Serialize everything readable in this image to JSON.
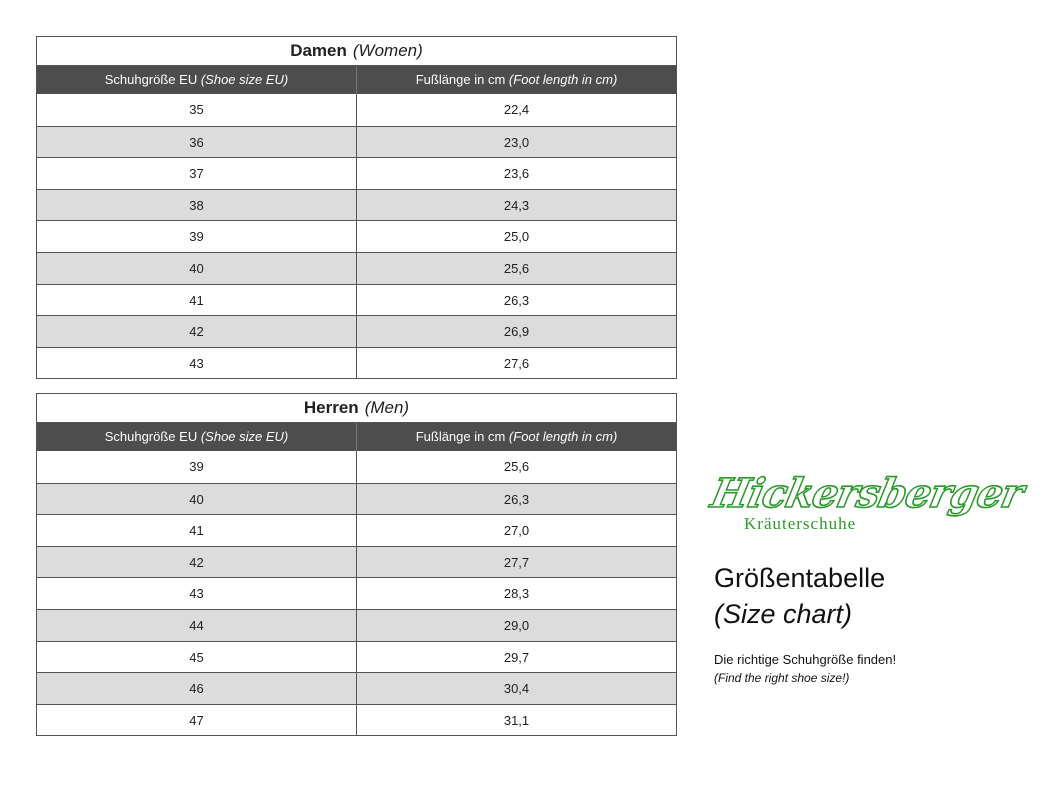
{
  "women": {
    "title": "Damen",
    "title_en": "(Women)",
    "col1": "Schuhgröße EU",
    "col1_en": "(Shoe size EU)",
    "col2": "Fußlänge in cm",
    "col2_en": "(Foot length in cm)",
    "rows": [
      [
        "35",
        "22,4"
      ],
      [
        "36",
        "23,0"
      ],
      [
        "37",
        "23,6"
      ],
      [
        "38",
        "24,3"
      ],
      [
        "39",
        "25,0"
      ],
      [
        "40",
        "25,6"
      ],
      [
        "41",
        "26,3"
      ],
      [
        "42",
        "26,9"
      ],
      [
        "43",
        "27,6"
      ]
    ]
  },
  "men": {
    "title": "Herren",
    "title_en": "(Men)",
    "col1": "Schuhgröße EU",
    "col1_en": "(Shoe size EU)",
    "col2": "Fußlänge in cm",
    "col2_en": "(Foot length in cm)",
    "rows": [
      [
        "39",
        "25,6"
      ],
      [
        "40",
        "26,3"
      ],
      [
        "41",
        "27,0"
      ],
      [
        "42",
        "27,7"
      ],
      [
        "43",
        "28,3"
      ],
      [
        "44",
        "29,0"
      ],
      [
        "45",
        "29,7"
      ],
      [
        "46",
        "30,4"
      ],
      [
        "47",
        "31,1"
      ]
    ]
  },
  "logo": {
    "name": "Hickersberger",
    "subtitle": "Kräuterschuhe",
    "color": "#2a9a2a"
  },
  "side": {
    "heading": "Größentabelle",
    "heading_en": "(Size chart)",
    "text": "Die richtige Schuhgröße finden!",
    "text_en": "(Find the right shoe size!)"
  }
}
